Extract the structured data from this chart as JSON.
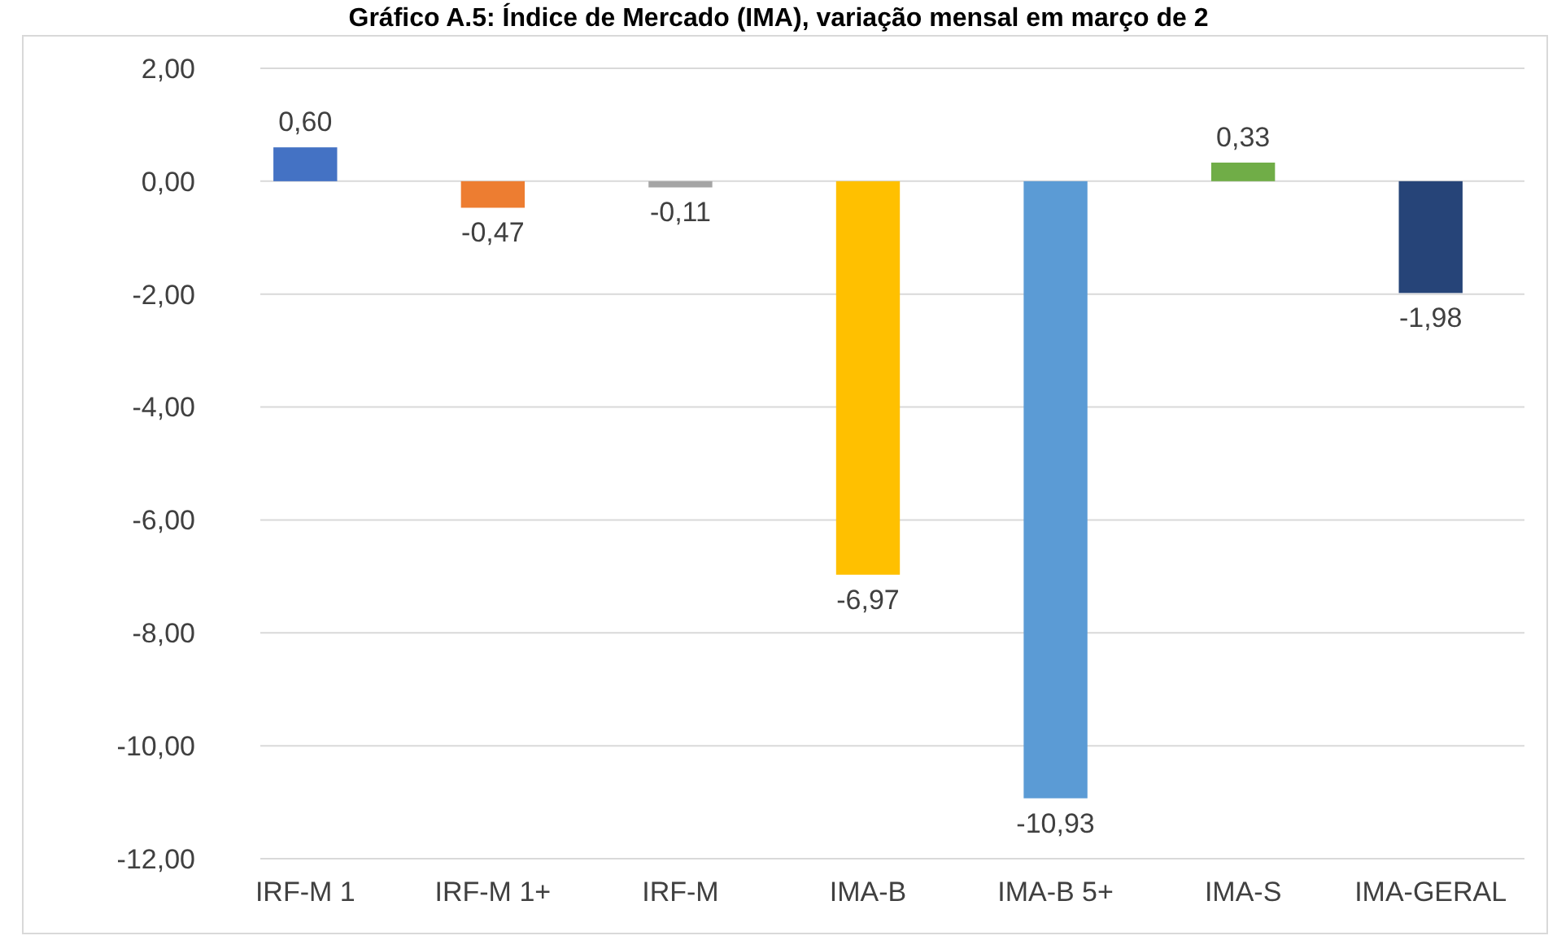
{
  "chart_data": {
    "type": "bar",
    "title": "Gráfico A.5: Índice de Mercado (IMA), variação mensal em março de 2",
    "categories": [
      "IRF-M 1",
      "IRF-M 1+",
      "IRF-M",
      "IMA-B",
      "IMA-B 5+",
      "IMA-S",
      "IMA-GERAL"
    ],
    "values": [
      0.6,
      -0.47,
      -0.11,
      -6.97,
      -10.93,
      0.33,
      -1.98
    ],
    "colors": [
      "#4472c4",
      "#ed7d31",
      "#a5a5a5",
      "#ffc000",
      "#5b9bd5",
      "#70ad47",
      "#264478"
    ],
    "value_labels": [
      "0,60",
      "-0,47",
      "-0,11",
      "-6,97",
      "-10,93",
      "0,33",
      "-1,98"
    ],
    "ylim": [
      -12,
      2
    ],
    "yticks": [
      {
        "value": 2,
        "label": "2,00"
      },
      {
        "value": 0,
        "label": "0,00"
      },
      {
        "value": -2,
        "label": "-2,00"
      },
      {
        "value": -4,
        "label": "-4,00"
      },
      {
        "value": -6,
        "label": "-6,00"
      },
      {
        "value": -8,
        "label": "-8,00"
      },
      {
        "value": -10,
        "label": "-10,00"
      },
      {
        "value": -12,
        "label": "-12,00"
      }
    ],
    "grid": "y"
  }
}
